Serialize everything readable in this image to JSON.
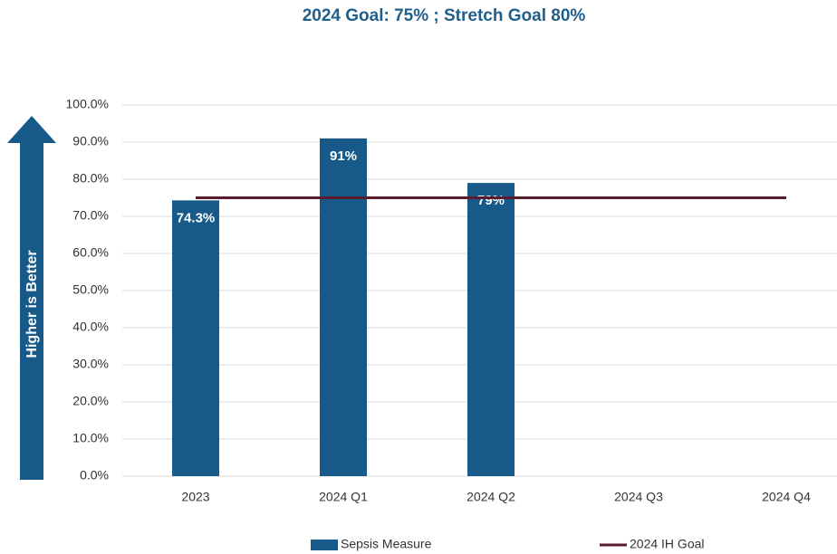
{
  "chart_data": {
    "type": "bar",
    "title": "2024 Goal: 75% ;  Stretch Goal 80%",
    "annotation": "Higher is Better",
    "categories": [
      "2023",
      "2024 Q1",
      "2024 Q2",
      "2024 Q3",
      "2024 Q4"
    ],
    "series": [
      {
        "name": "Sepsis Measure",
        "type": "bar",
        "color": "#175a8a",
        "values": [
          74.3,
          91,
          79,
          null,
          null
        ],
        "value_labels": [
          "74.3%",
          "91%",
          "79%",
          null,
          null
        ]
      },
      {
        "name": "2024 IH Goal",
        "type": "line",
        "color": "#5a1a30",
        "values": [
          75,
          75,
          75,
          75,
          75
        ]
      }
    ],
    "ylim": [
      0,
      100
    ],
    "yticks": [
      {
        "value": 0,
        "label": "0.0%"
      },
      {
        "value": 10,
        "label": "10.0%"
      },
      {
        "value": 20,
        "label": "20.0%"
      },
      {
        "value": 30,
        "label": "30.0%"
      },
      {
        "value": 40,
        "label": "40.0%"
      },
      {
        "value": 50,
        "label": "50.0%"
      },
      {
        "value": 60,
        "label": "60.0%"
      },
      {
        "value": 70,
        "label": "70.0%"
      },
      {
        "value": 80,
        "label": "80.0%"
      },
      {
        "value": 90,
        "label": "90.0%"
      },
      {
        "value": 100,
        "label": "100.0%"
      }
    ],
    "grid": true,
    "legend": "bottom"
  }
}
